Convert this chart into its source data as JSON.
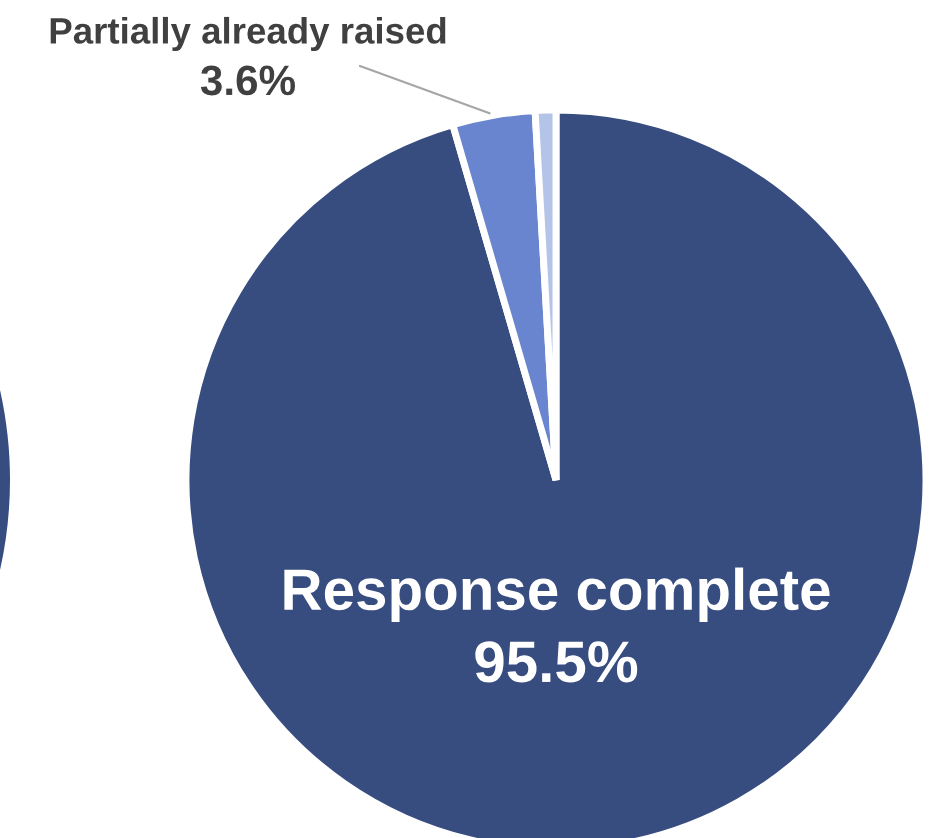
{
  "chart_data": {
    "type": "pie",
    "categories": [
      "Response complete",
      "Partially already raised",
      null
    ],
    "values": [
      95.5,
      3.6,
      0.9
    ],
    "colors": [
      "#374d80",
      "#6a85cf",
      "#b4c3e8"
    ],
    "value_labels": [
      "95.5%",
      "3.6%",
      null
    ]
  }
}
